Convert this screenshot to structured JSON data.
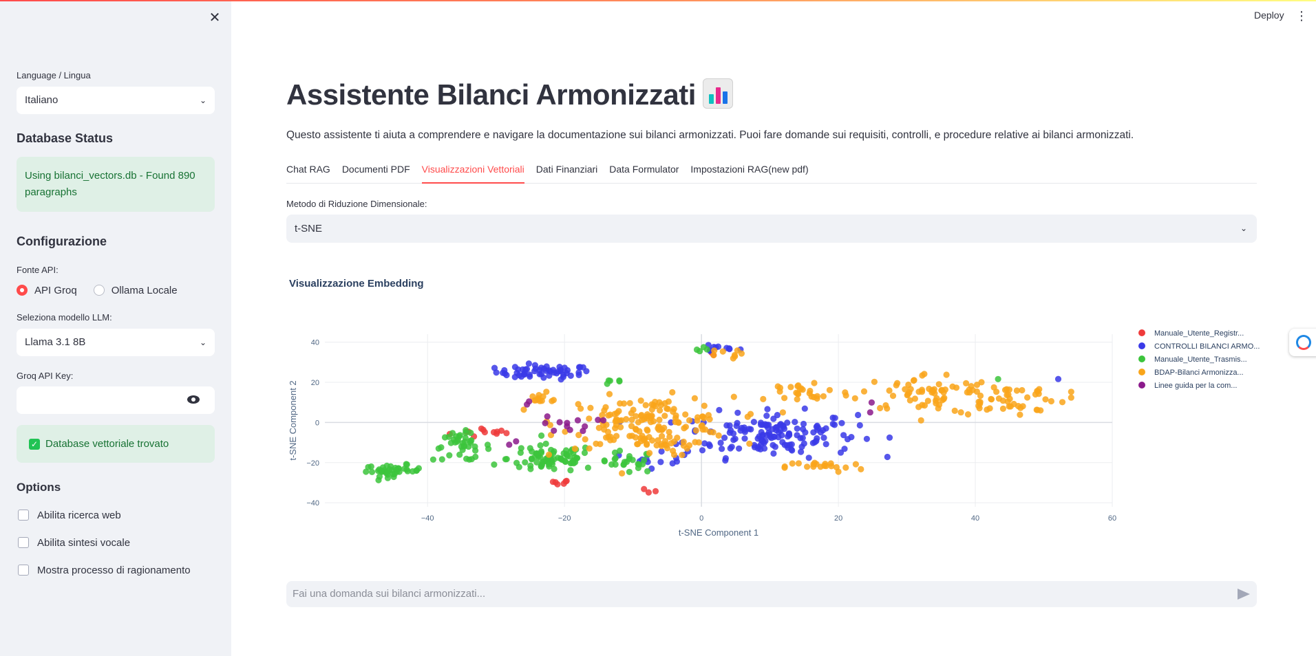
{
  "sidebar": {
    "language_label": "Language / Lingua",
    "language_value": "Italiano",
    "db_status_heading": "Database Status",
    "db_status_message": "Using bilanci_vectors.db - Found 890 paragraphs",
    "config_heading": "Configurazione",
    "api_source_label": "Fonte API:",
    "api_options": [
      "API Groq",
      "Ollama Locale"
    ],
    "api_selected": "API Groq",
    "model_label": "Seleziona modello LLM:",
    "model_value": "Llama 3.1 8B",
    "api_key_label": "Groq API Key:",
    "api_key_value": "",
    "vector_db_message": "Database vettoriale trovato",
    "options_heading": "Options",
    "options": [
      {
        "label": "Abilita ricerca web",
        "checked": false
      },
      {
        "label": "Abilita sintesi vocale",
        "checked": false
      },
      {
        "label": "Mostra processo di ragionamento",
        "checked": false
      }
    ]
  },
  "header": {
    "deploy_label": "Deploy"
  },
  "main": {
    "title": "Assistente Bilanci Armonizzati",
    "subtitle": "Questo assistente ti aiuta a comprendere e navigare la documentazione sui bilanci armonizzati. Puoi fare domande sui requisiti, controlli, e procedure relative ai bilanci armonizzati.",
    "tabs": [
      {
        "label": "Chat RAG"
      },
      {
        "label": "Documenti PDF"
      },
      {
        "label": "Visualizzazioni Vettoriali"
      },
      {
        "label": "Dati Finanziari"
      },
      {
        "label": "Data Formulator"
      },
      {
        "label": "Impostazioni RAG(new pdf)"
      }
    ],
    "active_tab": "Visualizzazioni Vettoriali",
    "method_label": "Metodo di Riduzione Dimensionale:",
    "method_value": "t-SNE",
    "chart_heading": "Visualizzazione Embedding",
    "chat_placeholder": "Fai una domanda sui bilanci armonizzati..."
  },
  "colors": {
    "accent": "#ff4b4b",
    "success_bg": "#dff0e6",
    "success_text": "#177233"
  },
  "chart_data": {
    "type": "scatter",
    "title": "Visualizzazione Embedding",
    "xlabel": "t-SNE Component 1",
    "ylabel": "t-SNE Component 2",
    "xlim": [
      -55,
      60
    ],
    "ylim": [
      -42,
      44
    ],
    "xticks": [
      -40,
      -20,
      0,
      20,
      40,
      60
    ],
    "yticks": [
      -40,
      -20,
      0,
      20,
      40
    ],
    "grid": true,
    "legend_position": "right",
    "series": [
      {
        "name": "Manuale_Utente_Registr...",
        "color": "#ef3b3b",
        "clusters": [
          {
            "center": [
              -31,
              -5
            ],
            "spread": [
              4,
              2
            ],
            "count": 12
          },
          {
            "center": [
              -21,
              -30
            ],
            "spread": [
              1.5,
              1
            ],
            "count": 6
          },
          {
            "center": [
              -7.5,
              -33
            ],
            "spread": [
              1,
              1
            ],
            "count": 3
          },
          {
            "center": [
              2,
              35
            ],
            "spread": [
              1,
              1
            ],
            "count": 2
          }
        ]
      },
      {
        "name": "CONTROLLI BILANCI ARMO...",
        "color": "#3a3ae8",
        "clusters": [
          {
            "center": [
              -23,
              25
            ],
            "spread": [
              5,
              2.5
            ],
            "count": 55
          },
          {
            "center": [
              2,
              37
            ],
            "spread": [
              2.5,
              1.5
            ],
            "count": 10
          },
          {
            "center": [
              10,
              -6
            ],
            "spread": [
              9,
              8
            ],
            "count": 150
          },
          {
            "center": [
              -6,
              -17
            ],
            "spread": [
              3,
              4
            ],
            "count": 12
          },
          {
            "center": [
              52,
              22
            ],
            "spread": [
              0.5,
              0.5
            ],
            "count": 1
          }
        ]
      },
      {
        "name": "Manuale_Utente_Trasmis...",
        "color": "#3cc43c",
        "clusters": [
          {
            "center": [
              -45,
              -24
            ],
            "spread": [
              3,
              2
            ],
            "count": 40
          },
          {
            "center": [
              -35,
              -12
            ],
            "spread": [
              3,
              5
            ],
            "count": 40
          },
          {
            "center": [
              -22,
              -18
            ],
            "spread": [
              4.5,
              5
            ],
            "count": 75
          },
          {
            "center": [
              -11,
              -20
            ],
            "spread": [
              3,
              4
            ],
            "count": 25
          },
          {
            "center": [
              -13,
              20
            ],
            "spread": [
              1.5,
              1
            ],
            "count": 5
          },
          {
            "center": [
              0,
              35
            ],
            "spread": [
              1.5,
              1.5
            ],
            "count": 4
          },
          {
            "center": [
              43,
              22
            ],
            "spread": [
              0.5,
              0.5
            ],
            "count": 1
          }
        ]
      },
      {
        "name": "BDAP-Bilanci Armonizza...",
        "color": "#f9a51a",
        "clusters": [
          {
            "center": [
              -8,
              0
            ],
            "spread": [
              9,
              9
            ],
            "count": 150
          },
          {
            "center": [
              18,
              -22
            ],
            "spread": [
              4,
              2
            ],
            "count": 20
          },
          {
            "center": [
              15,
              15
            ],
            "spread": [
              5,
              5
            ],
            "count": 25
          },
          {
            "center": [
              33,
              15
            ],
            "spread": [
              7,
              7
            ],
            "count": 60
          },
          {
            "center": [
              45,
              12
            ],
            "spread": [
              6,
              6
            ],
            "count": 50
          },
          {
            "center": [
              -24,
              12
            ],
            "spread": [
              3,
              2
            ],
            "count": 12
          },
          {
            "center": [
              3,
              34
            ],
            "spread": [
              2,
              1.5
            ],
            "count": 8
          },
          {
            "center": [
              -7,
              -11
            ],
            "spread": [
              4,
              4
            ],
            "count": 20
          }
        ]
      },
      {
        "name": "Linee guida per la com...",
        "color": "#8b1a8b",
        "clusters": [
          {
            "center": [
              -19,
              -1
            ],
            "spread": [
              3,
              3
            ],
            "count": 12
          },
          {
            "center": [
              -26,
              10
            ],
            "spread": [
              1,
              1
            ],
            "count": 2
          },
          {
            "center": [
              -28,
              -10
            ],
            "spread": [
              1,
              1
            ],
            "count": 2
          },
          {
            "center": [
              25,
              5
            ],
            "spread": [
              1,
              4
            ],
            "count": 2
          }
        ]
      }
    ]
  }
}
